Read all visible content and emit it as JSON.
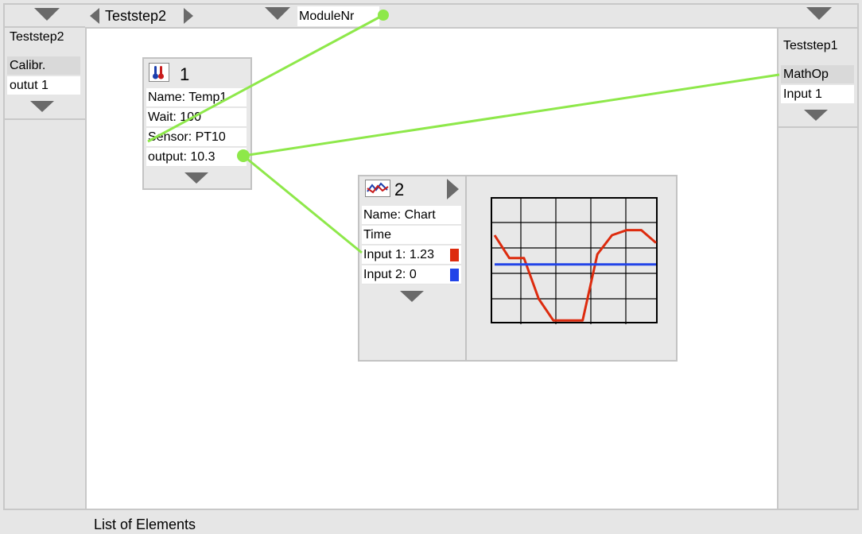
{
  "left_panel": {
    "title": "Teststep2",
    "items": [
      "Calibr.",
      "outut 1"
    ]
  },
  "right_panel": {
    "title": "Teststep1",
    "items": [
      "MathOp",
      "Input 1"
    ]
  },
  "top_bar": {
    "step_label": "Teststep2",
    "module_field": "ModuleNr"
  },
  "node1": {
    "number": "1",
    "rows": [
      "Name: Temp1",
      "Wait: 100",
      "Sensor: PT10",
      "output: 10.3"
    ]
  },
  "node2": {
    "number": "2",
    "rows": [
      "Name: Chart",
      "Time",
      "Input 1: 1.23",
      "Input 2: 0"
    ]
  },
  "colors": {
    "connection": "#8ee84a",
    "input1": "#dd2b0e",
    "input2": "#2244e8"
  },
  "bottom": {
    "label": "List of Elements"
  },
  "chart_data": {
    "type": "line",
    "grid": true,
    "series": [
      {
        "values": [
          0.7,
          0.52,
          0.52,
          0.2,
          0.03,
          0.03,
          0.03,
          0.55,
          0.7,
          0.74,
          0.74,
          0.64
        ]
      },
      {
        "values": [
          0.47,
          0.47,
          0.47,
          0.47,
          0.47,
          0.47,
          0.47,
          0.47,
          0.47,
          0.47,
          0.47,
          0.47
        ]
      }
    ]
  }
}
